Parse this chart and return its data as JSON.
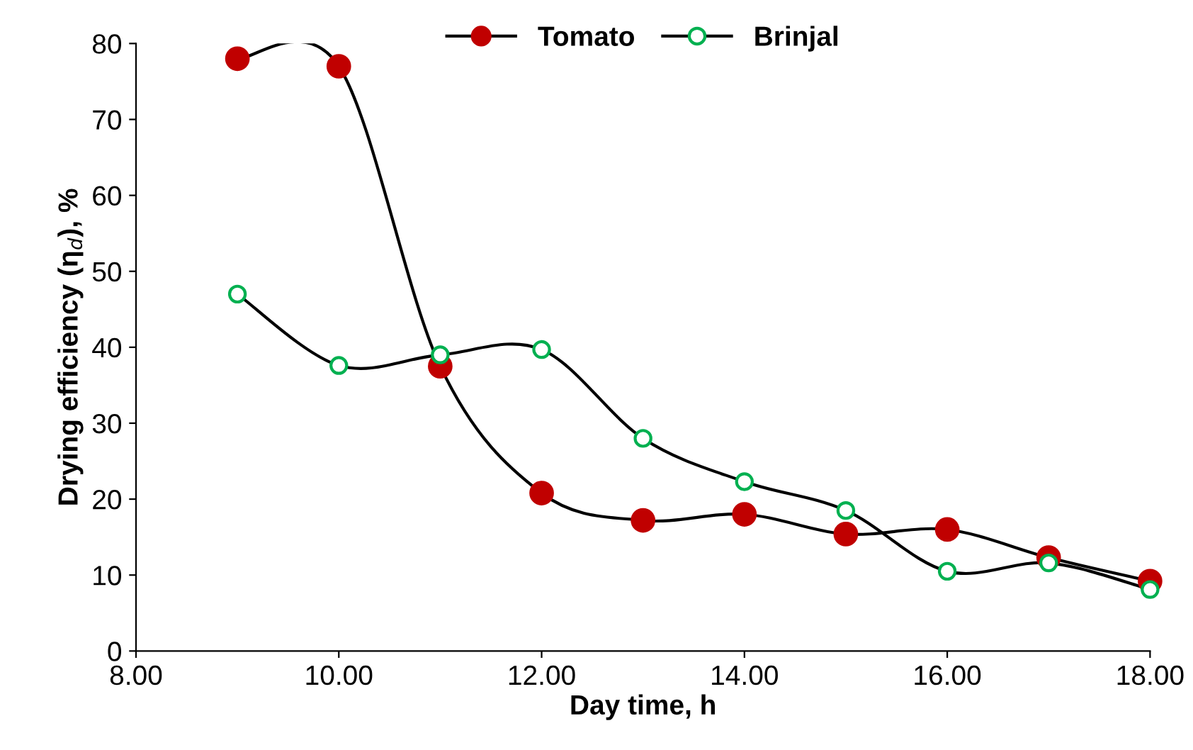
{
  "chart_data": {
    "type": "line",
    "xlabel": "Day time, h",
    "ylabel": "Drying efficiency (η$_{d}$), %",
    "x": [
      9,
      10,
      11,
      12,
      13,
      14,
      15,
      16,
      17,
      18
    ],
    "series": [
      {
        "name": "Tomato",
        "color": "#c00000",
        "marker": "circle",
        "values": [
          78,
          77,
          37.5,
          20.8,
          17.2,
          18.0,
          15.4,
          16.0,
          12.3,
          9.2
        ]
      },
      {
        "name": "Brinjal",
        "color": "#00b050",
        "marker": "circle",
        "values": [
          47,
          37.6,
          39,
          39.7,
          28,
          22.3,
          18.5,
          10.5,
          11.6,
          8.1
        ]
      }
    ],
    "xlim": [
      8,
      18
    ],
    "xticks": [
      {
        "value": 8,
        "label": "8.00"
      },
      {
        "value": 10,
        "label": "10.00"
      },
      {
        "value": 12,
        "label": "12.00"
      },
      {
        "value": 14,
        "label": "14.00"
      },
      {
        "value": 16,
        "label": "16.00"
      },
      {
        "value": 18,
        "label": "18.00"
      }
    ],
    "ylim": [
      0,
      80
    ],
    "yticks": [
      0,
      10,
      20,
      30,
      40,
      50,
      60,
      70,
      80
    ],
    "grid": false,
    "legend": "top",
    "line_style": "solid"
  }
}
